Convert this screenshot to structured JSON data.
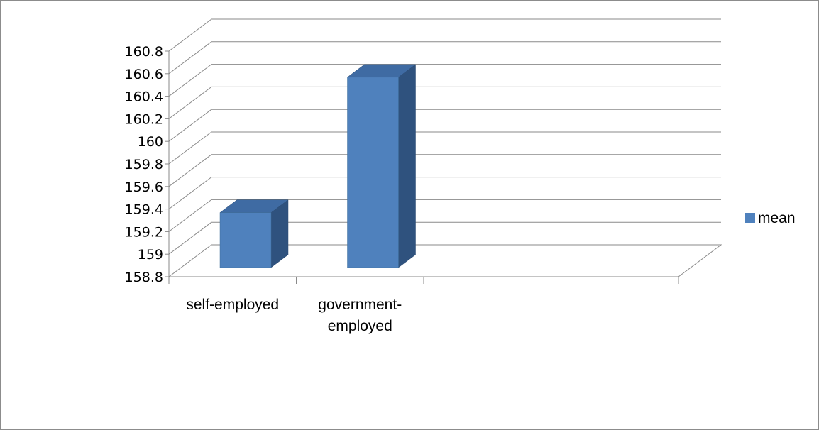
{
  "chart_data": {
    "type": "bar",
    "title": "",
    "xlabel": "",
    "ylabel": "",
    "categories": [
      "self-employed",
      "government-employed",
      "",
      ""
    ],
    "category_lines": [
      [
        "self-employed"
      ],
      [
        "government-",
        "employed"
      ],
      [],
      []
    ],
    "series": [
      {
        "name": "mean",
        "values": [
          159.45,
          160.65,
          null,
          null
        ],
        "color": "#4F81BD"
      }
    ],
    "ylim": [
      158.8,
      160.8
    ],
    "yticks": [
      "158.8",
      "159",
      "159.2",
      "159.4",
      "159.6",
      "159.8",
      "160",
      "160.2",
      "160.4",
      "160.6",
      "160.8"
    ],
    "grid": true,
    "style": "3d",
    "legend_position": "right"
  }
}
